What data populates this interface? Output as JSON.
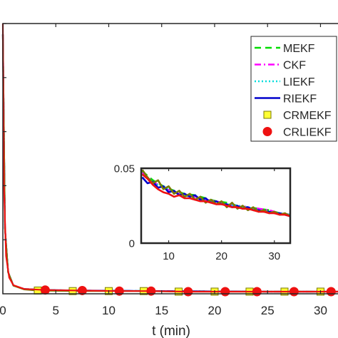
{
  "chart_data": [
    {
      "type": "line",
      "title": "",
      "xlabel": "t (min)",
      "ylabel": "",
      "xlim": [
        0,
        33
      ],
      "ylim": [
        0,
        0.5
      ],
      "x_ticks": [
        0,
        5,
        10,
        15,
        20,
        25,
        30
      ],
      "x_tick_labels": [
        "0",
        "5",
        "10",
        "15",
        "20",
        "25",
        "30"
      ],
      "y_ticks": [
        0.1,
        0.2,
        0.3,
        0.4,
        0.5
      ],
      "y_tick_labels": [
        "",
        "",
        "",
        "",
        ""
      ],
      "grid": false,
      "legend_position": "top-right",
      "series": [
        {
          "name": "MEKF",
          "color": "#00dd00",
          "style": "dashed",
          "marker": "none",
          "x": [
            0,
            0.2,
            0.5,
            1,
            2,
            4,
            8,
            15,
            25,
            33
          ],
          "y": [
            0.48,
            0.12,
            0.04,
            0.015,
            0.009,
            0.007,
            0.006,
            0.005,
            0.004,
            0.004
          ]
        },
        {
          "name": "CKF",
          "color": "#ff00ff",
          "style": "dashdot",
          "marker": "none",
          "x": [
            0,
            0.2,
            0.5,
            1,
            2,
            4,
            8,
            15,
            25,
            33
          ],
          "y": [
            0.48,
            0.12,
            0.04,
            0.015,
            0.009,
            0.007,
            0.006,
            0.005,
            0.004,
            0.004
          ]
        },
        {
          "name": "LIEKF",
          "color": "#00dddd",
          "style": "dotted",
          "marker": "none",
          "x": [
            0,
            0.2,
            0.5,
            1,
            2,
            4,
            8,
            15,
            25,
            33
          ],
          "y": [
            0.48,
            0.12,
            0.04,
            0.015,
            0.009,
            0.007,
            0.006,
            0.005,
            0.004,
            0.004
          ]
        },
        {
          "name": "RIEKF",
          "color": "#0000cc",
          "style": "solid",
          "marker": "none",
          "x": [
            0,
            0.2,
            0.5,
            1,
            2,
            4,
            8,
            15,
            25,
            33
          ],
          "y": [
            0.48,
            0.12,
            0.04,
            0.015,
            0.009,
            0.007,
            0.006,
            0.005,
            0.004,
            0.004
          ]
        },
        {
          "name": "CRMEKF",
          "color": "#7a7a00",
          "face_color": "#ffff33",
          "style": "solid",
          "marker": "square",
          "x": [
            0,
            0.2,
            0.5,
            1,
            2,
            3.3,
            6.6,
            10,
            13.3,
            16.6,
            20,
            23.3,
            26.6,
            30,
            33
          ],
          "y": [
            0.48,
            0.12,
            0.04,
            0.015,
            0.008,
            0.006,
            0.005,
            0.005,
            0.005,
            0.004,
            0.004,
            0.004,
            0.004,
            0.004,
            0.004
          ]
        },
        {
          "name": "CRLIEKF",
          "color": "#ee1111",
          "face_color": "#ee1111",
          "style": "solid",
          "marker": "circle",
          "x": [
            0,
            0.1,
            0.3,
            0.6,
            1,
            2,
            4,
            7.5,
            11,
            14,
            17.5,
            21,
            24,
            27.5,
            31,
            33
          ],
          "y": [
            0.5,
            0.2,
            0.07,
            0.03,
            0.016,
            0.009,
            0.007,
            0.006,
            0.005,
            0.005,
            0.004,
            0.004,
            0.004,
            0.004,
            0.004,
            0.004
          ]
        }
      ]
    },
    {
      "type": "line",
      "title": "",
      "xlabel": "",
      "ylabel": "",
      "xlim": [
        4.8,
        33
      ],
      "ylim": [
        0,
        0.05
      ],
      "x_ticks": [
        10,
        20,
        30
      ],
      "x_tick_labels": [
        "10",
        "20",
        "30"
      ],
      "y_ticks": [
        0,
        0.05
      ],
      "y_tick_labels": [
        "0",
        "0.05"
      ],
      "grid": false,
      "series": [
        {
          "name": "MEKF",
          "color": "#00dd00",
          "style": "dashed",
          "x": [
            5,
            7,
            9,
            11,
            13,
            15,
            17,
            19,
            21,
            23,
            25,
            27,
            29,
            31,
            33
          ],
          "y": [
            0.048,
            0.042,
            0.038,
            0.035,
            0.033,
            0.032,
            0.03,
            0.028,
            0.027,
            0.025,
            0.024,
            0.023,
            0.022,
            0.02,
            0.019
          ]
        },
        {
          "name": "CKF",
          "color": "#ff00ff",
          "style": "dashdot",
          "x": [
            5,
            7,
            9,
            11,
            13,
            15,
            17,
            19,
            21,
            23,
            25,
            27,
            29,
            31,
            33
          ],
          "y": [
            0.047,
            0.041,
            0.037,
            0.034,
            0.032,
            0.031,
            0.029,
            0.028,
            0.026,
            0.025,
            0.024,
            0.023,
            0.022,
            0.02,
            0.019
          ]
        },
        {
          "name": "LIEKF",
          "color": "#00dddd",
          "style": "dotted",
          "x": [
            5,
            7,
            9,
            11,
            13,
            15,
            17,
            19,
            21,
            23,
            25,
            27,
            29,
            31,
            33
          ],
          "y": [
            0.046,
            0.04,
            0.038,
            0.034,
            0.032,
            0.03,
            0.029,
            0.027,
            0.026,
            0.025,
            0.024,
            0.022,
            0.021,
            0.02,
            0.019
          ]
        },
        {
          "name": "RIEKF",
          "color": "#0000cc",
          "style": "solid",
          "x": [
            5,
            6,
            7,
            8,
            9,
            10,
            11,
            12,
            13,
            14,
            15,
            16,
            17,
            18,
            19,
            20,
            21,
            22,
            23,
            24,
            25,
            26,
            27,
            28,
            29,
            30,
            31,
            32,
            33
          ],
          "y": [
            0.044,
            0.04,
            0.041,
            0.037,
            0.038,
            0.034,
            0.035,
            0.032,
            0.033,
            0.031,
            0.032,
            0.029,
            0.03,
            0.027,
            0.028,
            0.026,
            0.026,
            0.024,
            0.025,
            0.023,
            0.024,
            0.022,
            0.022,
            0.021,
            0.021,
            0.02,
            0.02,
            0.019,
            0.018
          ]
        },
        {
          "name": "CRMEKF",
          "color": "#7a7a00",
          "face_color": "#ffff33",
          "style": "solid",
          "x": [
            5,
            6,
            7,
            8,
            9,
            10,
            11,
            12,
            13,
            14,
            15,
            16,
            17,
            18,
            19,
            20,
            21,
            22,
            23,
            24,
            25,
            26,
            27,
            28,
            29,
            30,
            31,
            32,
            33
          ],
          "y": [
            0.049,
            0.044,
            0.04,
            0.042,
            0.036,
            0.038,
            0.033,
            0.035,
            0.031,
            0.033,
            0.029,
            0.031,
            0.027,
            0.029,
            0.026,
            0.028,
            0.024,
            0.027,
            0.023,
            0.025,
            0.022,
            0.024,
            0.021,
            0.022,
            0.02,
            0.021,
            0.019,
            0.02,
            0.018
          ]
        },
        {
          "name": "CRLIEKF",
          "color": "#ee1111",
          "face_color": "#ee1111",
          "style": "solid",
          "x": [
            5,
            6,
            7,
            8,
            9,
            10,
            11,
            12,
            13,
            14,
            15,
            16,
            17,
            18,
            19,
            20,
            21,
            22,
            23,
            24,
            25,
            26,
            27,
            28,
            29,
            30,
            31,
            32,
            33
          ],
          "y": [
            0.046,
            0.043,
            0.039,
            0.036,
            0.034,
            0.033,
            0.031,
            0.032,
            0.03,
            0.03,
            0.029,
            0.028,
            0.028,
            0.027,
            0.026,
            0.026,
            0.025,
            0.024,
            0.024,
            0.023,
            0.023,
            0.022,
            0.021,
            0.021,
            0.02,
            0.02,
            0.019,
            0.019,
            0.018
          ]
        }
      ]
    }
  ]
}
